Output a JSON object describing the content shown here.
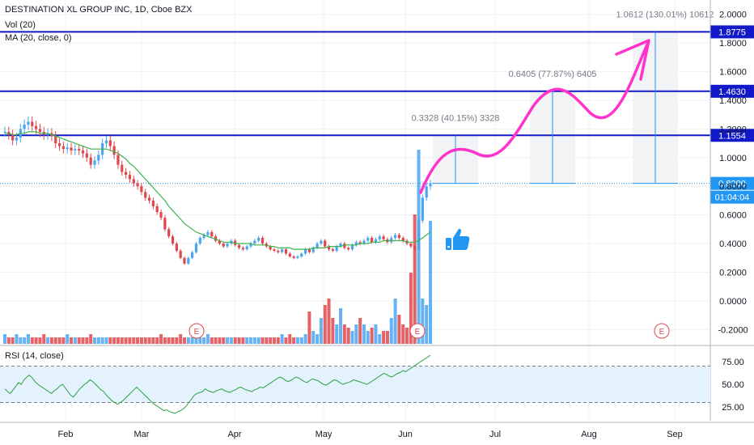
{
  "header": {
    "title": "DESTINATION XL GROUP INC, 1D, Cboe BZX",
    "vol_label": "Vol (20)",
    "ma_label": "MA (20, close, 0)"
  },
  "rsi": {
    "label": "RSI (14, close)",
    "ticks": [
      "75.00",
      "50.00",
      "25.00"
    ],
    "upper": 70,
    "lower": 30,
    "values": [
      45,
      42,
      40,
      44,
      48,
      52,
      50,
      55,
      58,
      60,
      57,
      53,
      50,
      48,
      46,
      44,
      42,
      40,
      43,
      45,
      48,
      50,
      46,
      42,
      38,
      36,
      40,
      44,
      47,
      50,
      52,
      55,
      53,
      50,
      47,
      44,
      42,
      38,
      35,
      32,
      30,
      28,
      30,
      32,
      35,
      38,
      41,
      44,
      47,
      44,
      41,
      38,
      35,
      32,
      29,
      27,
      25,
      23,
      21,
      22,
      20,
      19,
      18,
      20,
      21,
      23,
      26,
      30,
      34,
      38,
      40,
      41,
      42,
      45,
      43,
      42,
      41,
      43,
      44,
      45,
      43,
      42,
      41,
      43,
      44,
      46,
      47,
      45,
      44,
      43,
      42,
      44,
      45,
      47,
      46,
      48,
      50,
      52,
      54,
      56,
      58,
      57,
      55,
      53,
      54,
      56,
      58,
      57,
      55,
      53,
      52,
      54,
      56,
      55,
      54,
      52,
      50,
      49,
      51,
      53,
      55,
      54,
      52,
      50,
      51,
      52,
      53,
      55,
      54,
      53,
      52,
      51,
      50,
      52,
      54,
      56,
      58,
      60,
      62,
      61,
      59,
      58,
      60,
      62,
      63,
      65,
      64,
      66,
      68,
      70,
      72,
      74,
      76,
      78,
      80,
      82
    ]
  },
  "chart_data": {
    "type": "candlestick",
    "title": "DESTINATION XL GROUP INC, 1D, Cboe BZX",
    "ylim": [
      -0.3,
      2.1
    ],
    "y_ticks": [
      "2.0000",
      "1.8000",
      "1.6000",
      "1.4000",
      "1.2000",
      "1.0000",
      "0.8000",
      "0.6000",
      "0.4000",
      "0.2000",
      "0.0000",
      "-0.2000"
    ],
    "x_ticks": [
      "Feb",
      "Mar",
      "Apr",
      "May",
      "Jun",
      "Jul",
      "Aug",
      "Sep"
    ],
    "closes": [
      1.18,
      1.16,
      1.12,
      1.14,
      1.2,
      1.23,
      1.25,
      1.22,
      1.2,
      1.18,
      1.16,
      1.17,
      1.15,
      1.1,
      1.08,
      1.06,
      1.07,
      1.05,
      1.06,
      1.05,
      1.03,
      1.0,
      0.95,
      0.98,
      1.02,
      1.1,
      1.12,
      1.08,
      1.02,
      0.95,
      0.9,
      0.88,
      0.85,
      0.82,
      0.8,
      0.76,
      0.72,
      0.7,
      0.66,
      0.62,
      0.58,
      0.5,
      0.45,
      0.4,
      0.35,
      0.3,
      0.26,
      0.3,
      0.34,
      0.4,
      0.44,
      0.46,
      0.48,
      0.45,
      0.42,
      0.4,
      0.38,
      0.4,
      0.42,
      0.39,
      0.37,
      0.36,
      0.38,
      0.4,
      0.42,
      0.44,
      0.4,
      0.38,
      0.36,
      0.35,
      0.34,
      0.36,
      0.33,
      0.31,
      0.3,
      0.31,
      0.33,
      0.36,
      0.34,
      0.37,
      0.4,
      0.42,
      0.38,
      0.36,
      0.35,
      0.38,
      0.4,
      0.37,
      0.36,
      0.39,
      0.41,
      0.4,
      0.42,
      0.44,
      0.41,
      0.43,
      0.45,
      0.43,
      0.41,
      0.44,
      0.46,
      0.44,
      0.42,
      0.4,
      0.38,
      0.36,
      0.56,
      0.72,
      0.8,
      0.82
    ],
    "ma_values": [
      1.17,
      1.17,
      1.16,
      1.16,
      1.17,
      1.17,
      1.18,
      1.18,
      1.18,
      1.17,
      1.17,
      1.17,
      1.16,
      1.15,
      1.14,
      1.13,
      1.12,
      1.11,
      1.1,
      1.09,
      1.08,
      1.07,
      1.06,
      1.06,
      1.06,
      1.06,
      1.06,
      1.05,
      1.04,
      1.03,
      1.01,
      0.99,
      0.96,
      0.94,
      0.91,
      0.88,
      0.85,
      0.82,
      0.79,
      0.76,
      0.73,
      0.7,
      0.66,
      0.63,
      0.6,
      0.57,
      0.54,
      0.52,
      0.5,
      0.48,
      0.47,
      0.46,
      0.45,
      0.44,
      0.43,
      0.42,
      0.41,
      0.41,
      0.41,
      0.4,
      0.4,
      0.4,
      0.4,
      0.4,
      0.39,
      0.39,
      0.39,
      0.39,
      0.38,
      0.38,
      0.37,
      0.37,
      0.37,
      0.37,
      0.36,
      0.36,
      0.36,
      0.36,
      0.36,
      0.37,
      0.37,
      0.37,
      0.37,
      0.38,
      0.38,
      0.38,
      0.38,
      0.39,
      0.39,
      0.39,
      0.39,
      0.4,
      0.4,
      0.4,
      0.41,
      0.41,
      0.41,
      0.42,
      0.42,
      0.42,
      0.42,
      0.42,
      0.42,
      0.41,
      0.41,
      0.41,
      0.42,
      0.44,
      0.46,
      0.48
    ],
    "volumes": [
      3,
      2,
      2,
      3,
      2,
      2,
      3,
      2,
      2,
      2,
      3,
      2,
      2,
      2,
      2,
      2,
      3,
      2,
      2,
      2,
      2,
      2,
      3,
      2,
      2,
      2,
      2,
      2,
      2,
      2,
      2,
      2,
      2,
      2,
      2,
      2,
      2,
      2,
      2,
      2,
      3,
      2,
      2,
      2,
      2,
      3,
      2,
      2,
      2,
      2,
      2,
      2,
      3,
      2,
      2,
      2,
      2,
      2,
      2,
      2,
      2,
      2,
      2,
      2,
      2,
      2,
      2,
      2,
      2,
      2,
      2,
      3,
      2,
      3,
      2,
      2,
      2,
      3,
      10,
      4,
      3,
      8,
      12,
      14,
      8,
      6,
      11,
      6,
      5,
      4,
      6,
      8,
      6,
      4,
      5,
      6,
      3,
      4,
      4,
      8,
      14,
      9,
      6,
      5,
      22,
      40,
      60,
      14,
      12,
      38
    ],
    "price_levels": [
      {
        "value": 1.8775,
        "label": "1.8775"
      },
      {
        "value": 1.463,
        "label": "1.4630"
      },
      {
        "value": 1.1554,
        "label": "1.1554"
      }
    ],
    "current_price": {
      "value": 0.82,
      "label": "0.8200",
      "countdown": "01:04:04"
    },
    "projections": [
      {
        "label": "0.3328 (40.15%) 3328",
        "from": 0.82,
        "to": 1.1554
      },
      {
        "label": "0.6405 (77.87%) 6405",
        "from": 0.82,
        "to": 1.463
      },
      {
        "label": "1.0612 (130.01%) 10612",
        "from": 0.82,
        "to": 1.8775
      }
    ],
    "earnings_markers": [
      "E",
      "E",
      "E"
    ],
    "colors": {
      "up": "#4aa5f2",
      "down": "#e0474c",
      "ma": "#3cb34a",
      "level": "#1219c8",
      "price": "#2196f3",
      "arrow": "#ff33cc",
      "rsi_line": "#2ea043",
      "rsi_band": "#e3f2fd",
      "grid": "#eef0f3"
    },
    "grid": true
  }
}
